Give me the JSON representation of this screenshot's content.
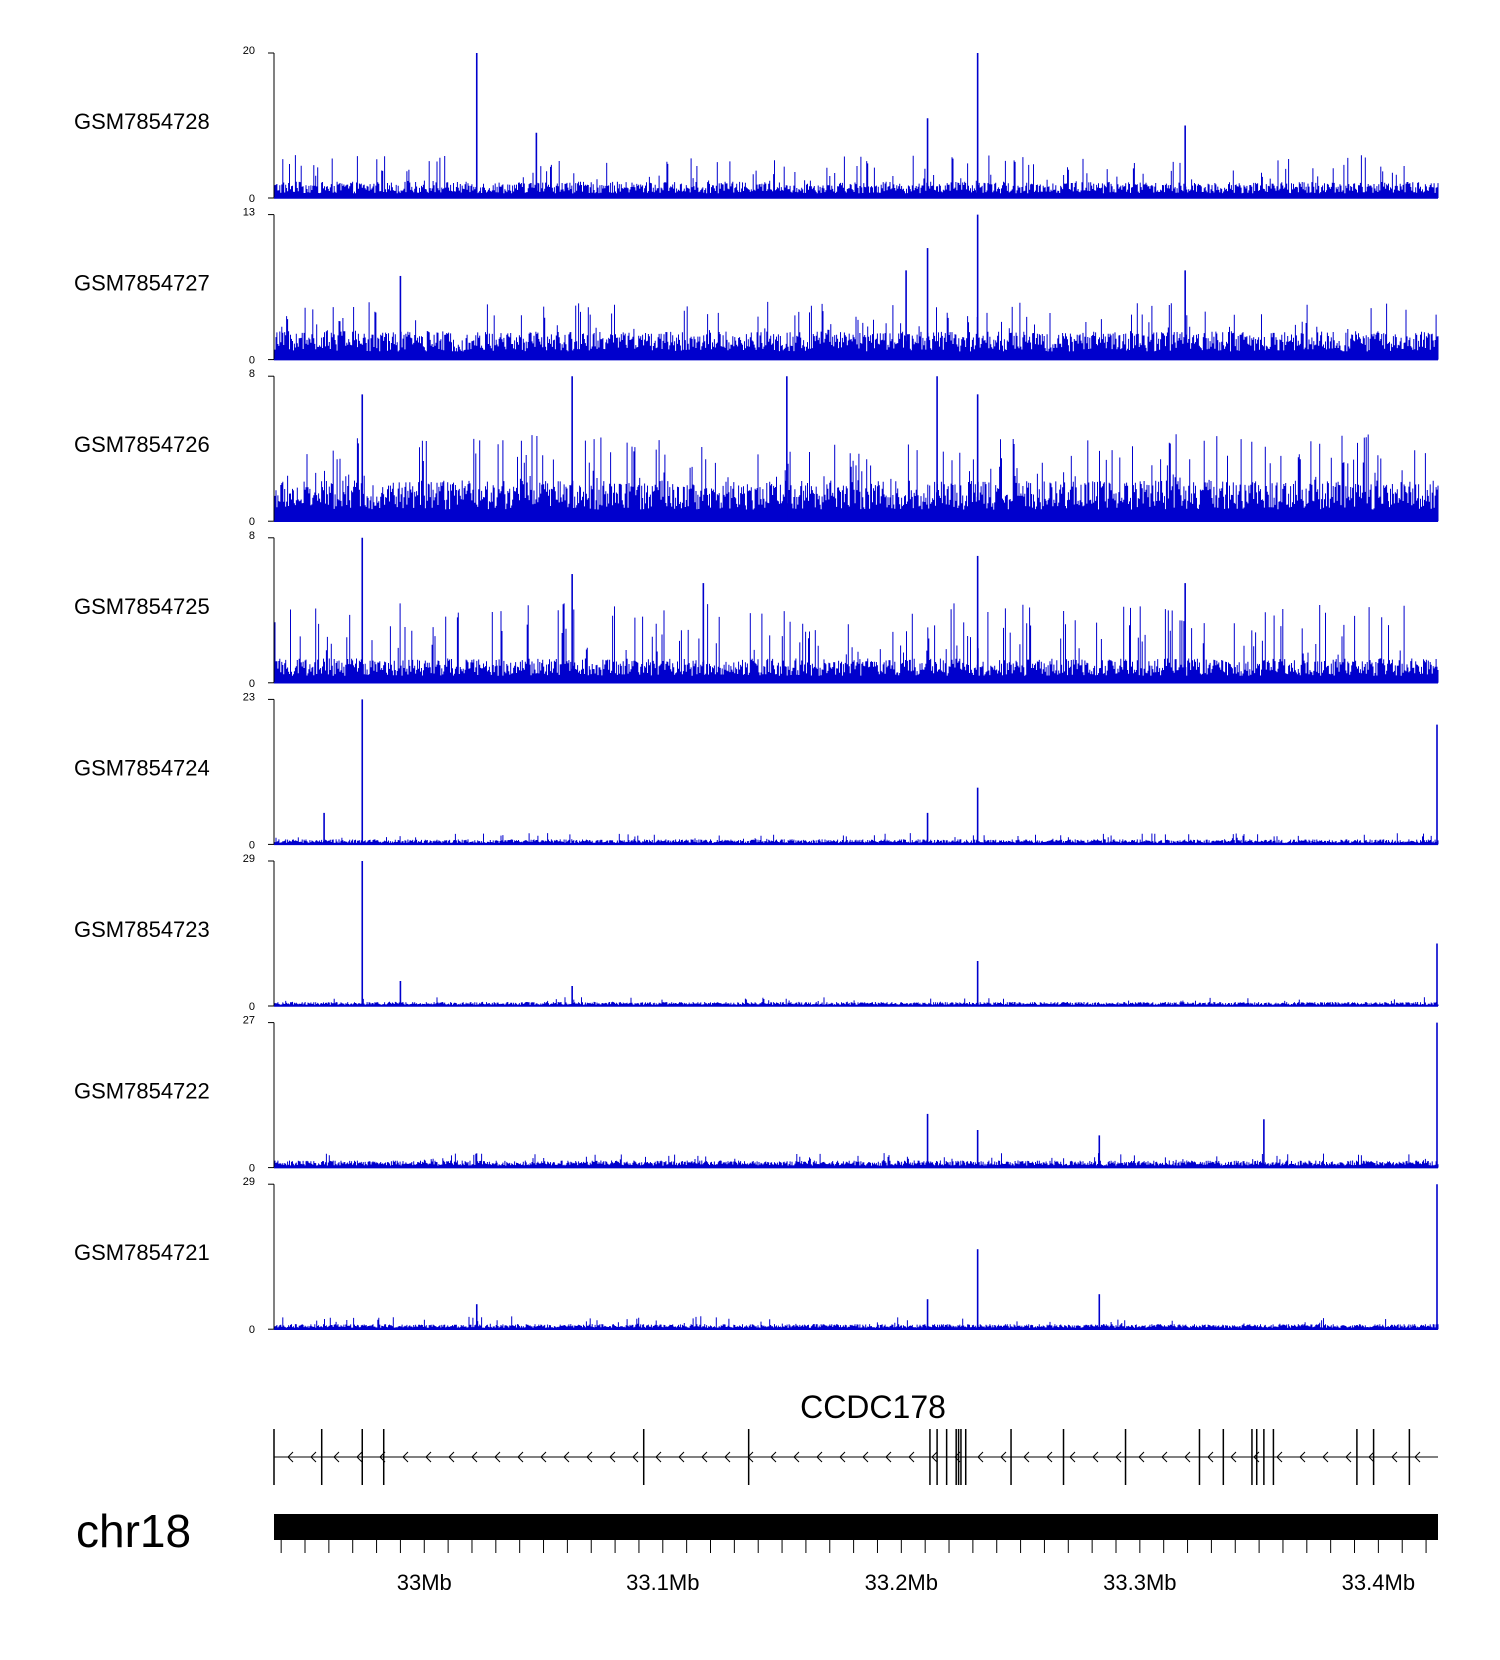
{
  "chart_data": {
    "type": "area",
    "signal_color": "#0000cd",
    "chromosome": "chr18",
    "genomic_range_mb": [
      32.937,
      33.425
    ],
    "tracks": [
      {
        "name": "GSM7854728",
        "ymax": "20",
        "ymin": "0",
        "peaks": [
          {
            "x": 33.022,
            "y": 20
          },
          {
            "x": 33.211,
            "y": 11
          },
          {
            "x": 33.232,
            "y": 20
          },
          {
            "x": 33.047,
            "y": 9
          },
          {
            "x": 33.319,
            "y": 10
          }
        ]
      },
      {
        "name": "GSM7854727",
        "ymax": "13",
        "ymin": "0",
        "peaks": [
          {
            "x": 33.211,
            "y": 10
          },
          {
            "x": 33.232,
            "y": 13
          },
          {
            "x": 33.202,
            "y": 8
          },
          {
            "x": 32.99,
            "y": 7.5
          },
          {
            "x": 33.319,
            "y": 8
          }
        ]
      },
      {
        "name": "GSM7854726",
        "ymax": "8",
        "ymin": "0",
        "peaks": [
          {
            "x": 33.062,
            "y": 8
          },
          {
            "x": 33.152,
            "y": 8
          },
          {
            "x": 33.215,
            "y": 8
          },
          {
            "x": 32.974,
            "y": 7
          },
          {
            "x": 33.232,
            "y": 7
          }
        ]
      },
      {
        "name": "GSM7854725",
        "ymax": "8",
        "ymin": "0",
        "peaks": [
          {
            "x": 32.974,
            "y": 8
          },
          {
            "x": 33.232,
            "y": 7
          },
          {
            "x": 33.062,
            "y": 6
          },
          {
            "x": 33.117,
            "y": 5.5
          },
          {
            "x": 33.319,
            "y": 5.5
          }
        ]
      },
      {
        "name": "GSM7854724",
        "ymax": "23",
        "ymin": "0",
        "peaks": [
          {
            "x": 32.974,
            "y": 23
          },
          {
            "x": 33.232,
            "y": 9
          },
          {
            "x": 33.211,
            "y": 5
          },
          {
            "x": 32.958,
            "y": 5
          },
          {
            "x": 33.425,
            "y": 19
          }
        ]
      },
      {
        "name": "GSM7854723",
        "ymax": "29",
        "ymin": "0",
        "peaks": [
          {
            "x": 32.974,
            "y": 29
          },
          {
            "x": 33.232,
            "y": 9
          },
          {
            "x": 32.99,
            "y": 5
          },
          {
            "x": 33.062,
            "y": 4
          },
          {
            "x": 33.425,
            "y": 12.5
          }
        ]
      },
      {
        "name": "GSM7854722",
        "ymax": "27",
        "ymin": "0",
        "peaks": [
          {
            "x": 33.211,
            "y": 10
          },
          {
            "x": 33.232,
            "y": 7
          },
          {
            "x": 33.283,
            "y": 6
          },
          {
            "x": 33.352,
            "y": 9
          },
          {
            "x": 33.425,
            "y": 27
          }
        ]
      },
      {
        "name": "GSM7854721",
        "ymax": "29",
        "ymin": "0",
        "peaks": [
          {
            "x": 33.232,
            "y": 16
          },
          {
            "x": 33.211,
            "y": 6
          },
          {
            "x": 33.283,
            "y": 7
          },
          {
            "x": 33.022,
            "y": 5
          },
          {
            "x": 33.425,
            "y": 29
          }
        ]
      }
    ],
    "gene": {
      "name": "CCDC178",
      "strand": "-",
      "exons_mb": [
        32.937,
        32.957,
        32.974,
        32.983,
        33.092,
        33.136,
        33.212,
        33.215,
        33.219,
        33.223,
        33.224,
        33.225,
        33.227,
        33.246,
        33.268,
        33.294,
        33.325,
        33.335,
        33.347,
        33.349,
        33.352,
        33.356,
        33.391,
        33.398,
        33.413
      ]
    },
    "x_axis": {
      "ticks_mb": [
        32.94,
        32.95,
        32.96,
        32.97,
        32.98,
        32.99,
        33.0,
        33.01,
        33.02,
        33.03,
        33.04,
        33.05,
        33.06,
        33.07,
        33.08,
        33.09,
        33.1,
        33.11,
        33.12,
        33.13,
        33.14,
        33.15,
        33.16,
        33.17,
        33.18,
        33.19,
        33.2,
        33.21,
        33.22,
        33.23,
        33.24,
        33.25,
        33.26,
        33.27,
        33.28,
        33.29,
        33.3,
        33.31,
        33.32,
        33.33,
        33.34,
        33.35,
        33.36,
        33.37,
        33.38,
        33.39,
        33.4,
        33.41,
        33.42
      ],
      "major_labels": [
        {
          "mb": 33.0,
          "label": "33Mb"
        },
        {
          "mb": 33.1,
          "label": "33.1Mb"
        },
        {
          "mb": 33.2,
          "label": "33.2Mb"
        },
        {
          "mb": 33.3,
          "label": "33.3Mb"
        },
        {
          "mb": 33.4,
          "label": "33.4Mb"
        }
      ]
    }
  }
}
